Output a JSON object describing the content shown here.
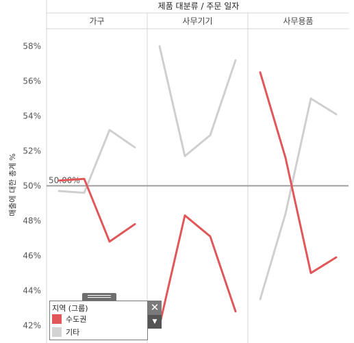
{
  "chart_data": {
    "type": "line",
    "column_header": "제품 대분류 / 주문 일자",
    "ylabel": "매출에 대한 총계 %",
    "ylim": [
      41.5,
      59
    ],
    "yticks": [
      42,
      44,
      46,
      48,
      50,
      52,
      54,
      56,
      58
    ],
    "ytick_labels": [
      "42%",
      "44%",
      "46%",
      "48%",
      "50%",
      "52%",
      "54%",
      "56%",
      "58%"
    ],
    "reference_line": {
      "value": 50,
      "label": "50.00%"
    },
    "grid": false,
    "legend_position": "bottom-left",
    "panels": [
      {
        "name": "가구",
        "series": [
          {
            "name": "수도권",
            "values": [
              50.3,
              50.4,
              46.8,
              47.8
            ]
          },
          {
            "name": "기타",
            "values": [
              49.7,
              49.6,
              53.2,
              52.2
            ]
          }
        ]
      },
      {
        "name": "사무기기",
        "series": [
          {
            "name": "수도권",
            "values": [
              42.0,
              48.3,
              47.1,
              42.8
            ]
          },
          {
            "name": "기타",
            "values": [
              58.0,
              51.7,
              52.9,
              57.2
            ]
          }
        ]
      },
      {
        "name": "사무용품",
        "series": [
          {
            "name": "수도권",
            "values": [
              56.5,
              51.6,
              45.0,
              45.9
            ]
          },
          {
            "name": "기타",
            "values": [
              43.5,
              48.4,
              55.0,
              54.1
            ]
          }
        ]
      }
    ]
  },
  "legend": {
    "title": "지역 (그룹)",
    "items": [
      {
        "label": "수도권",
        "color": "#e15759"
      },
      {
        "label": "기타",
        "color": "#d3d3d3"
      }
    ],
    "close_icon": "close-icon",
    "menu_icon": "dropdown-icon",
    "grip_icon": "drag-handle-icon"
  },
  "colors": {
    "수도권": "#e15759",
    "기타": "#cfcfcf",
    "reference_line": "#9e9e9e"
  }
}
